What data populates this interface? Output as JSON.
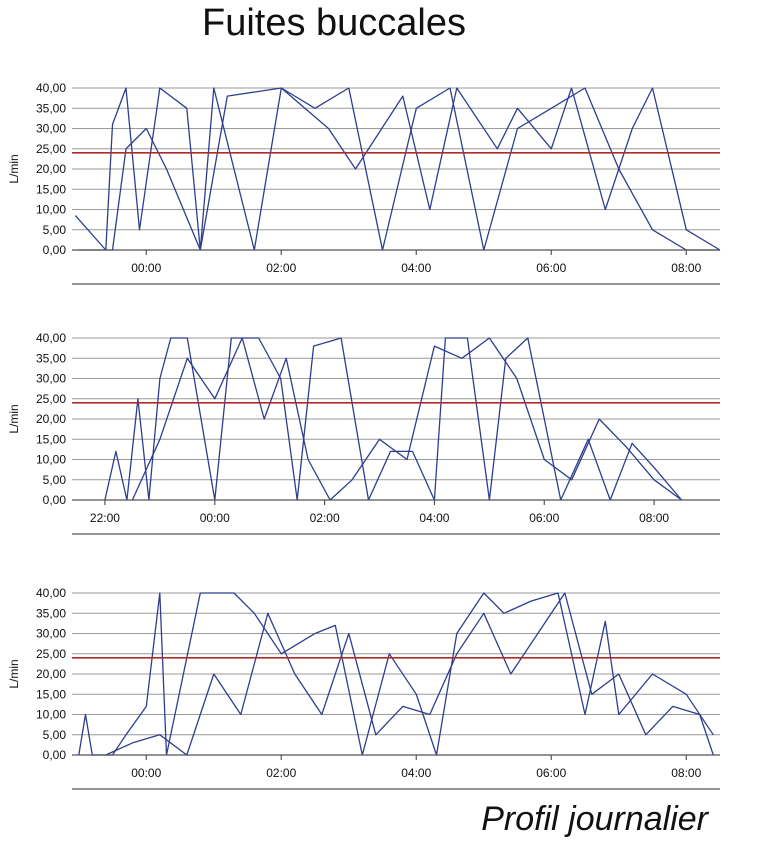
{
  "title": "Fuites buccales",
  "footer": "Profil journalier",
  "colors": {
    "trace": "#2e3e8f",
    "threshold": "#b22b2b",
    "grid": "#9a9a9a"
  },
  "chart_data": [
    {
      "type": "line",
      "ylabel": "L/min",
      "ylim": [
        0,
        40
      ],
      "yticks": [
        "40,00",
        "35,00",
        "30,00",
        "25,00",
        "20,00",
        "15,00",
        "10,00",
        "5,00",
        "0,00"
      ],
      "threshold": 24,
      "xlim": [
        -1.1,
        8.5
      ],
      "xticks": [
        {
          "label": "00:00",
          "x": 0
        },
        {
          "label": "02:00",
          "x": 2
        },
        {
          "label": "04:00",
          "x": 4
        },
        {
          "label": "06:00",
          "x": 6
        },
        {
          "label": "08:00",
          "x": 8
        }
      ],
      "segments": [
        [
          -1.05,
          8.5,
          -0.6,
          0,
          -0.5,
          31,
          -0.3,
          40,
          -0.1,
          5,
          0.2,
          40,
          0.6,
          35,
          0.8,
          0,
          1.0,
          40,
          1.3,
          20,
          1.6,
          0,
          2.0,
          40,
          2.7,
          30,
          3.1,
          20,
          3.8,
          38,
          4.2,
          10,
          4.6,
          40,
          5.2,
          25,
          5.5,
          35,
          6.0,
          25,
          6.3,
          40,
          6.8,
          10,
          7.2,
          30,
          7.5,
          40,
          8.0,
          5,
          8.5,
          0
        ],
        [
          -1.0,
          0,
          -0.5,
          0,
          -0.3,
          25,
          0.0,
          30,
          0.3,
          20,
          0.8,
          0,
          1.2,
          38,
          2.0,
          40,
          2.5,
          35,
          3.0,
          40,
          3.5,
          0,
          4.0,
          35,
          4.5,
          40,
          5.0,
          0,
          5.5,
          30,
          6.0,
          35,
          6.5,
          40,
          7.0,
          20,
          7.5,
          5,
          8.0,
          0,
          8.5,
          0
        ]
      ]
    },
    {
      "type": "line",
      "ylabel": "L/min",
      "ylim": [
        0,
        40
      ],
      "yticks": [
        "40,00",
        "35,00",
        "30,00",
        "25,00",
        "20,00",
        "15,00",
        "10,00",
        "5,00",
        "0,00"
      ],
      "threshold": 24,
      "xlim": [
        -2.6,
        9.2
      ],
      "xticks": [
        {
          "label": "22:00",
          "x": -2
        },
        {
          "label": "00:00",
          "x": 0
        },
        {
          "label": "02:00",
          "x": 2
        },
        {
          "label": "04:00",
          "x": 4
        },
        {
          "label": "06:00",
          "x": 6
        },
        {
          "label": "08:00",
          "x": 8
        }
      ],
      "segments": [
        [
          -2.0,
          0,
          -1.8,
          12,
          -1.6,
          0,
          -1.4,
          25,
          -1.2,
          0,
          -1.0,
          30,
          -0.8,
          40,
          -0.5,
          40,
          0,
          0,
          0.3,
          40,
          0.8,
          40,
          1.2,
          30,
          1.5,
          0,
          1.8,
          38,
          2.3,
          40,
          2.8,
          0,
          3.2,
          12,
          3.6,
          12,
          4.0,
          0,
          4.2,
          40,
          4.6,
          40,
          5.0,
          0,
          5.3,
          35,
          5.7,
          40,
          6.0,
          20,
          6.3,
          0,
          6.8,
          15,
          7.2,
          0,
          7.6,
          14,
          8.0,
          8,
          8.5,
          0
        ],
        [
          -1.5,
          0,
          -1.0,
          15,
          -0.5,
          35,
          0,
          25,
          0.5,
          40,
          0.9,
          20,
          1.3,
          35,
          1.7,
          10,
          2.1,
          0,
          2.5,
          5,
          3.0,
          15,
          3.5,
          10,
          4.0,
          38,
          4.5,
          35,
          5.0,
          40,
          5.5,
          30,
          6.0,
          10,
          6.5,
          5,
          7.0,
          20,
          7.5,
          13,
          8.0,
          5,
          8.5,
          0
        ]
      ]
    },
    {
      "type": "line",
      "ylabel": "L/min",
      "ylim": [
        0,
        40
      ],
      "yticks": [
        "40,00",
        "35,00",
        "30,00",
        "25,00",
        "20,00",
        "15,00",
        "10,00",
        "5,00",
        "0,00"
      ],
      "threshold": 24,
      "xlim": [
        -1.1,
        8.5
      ],
      "xticks": [
        {
          "label": "00:00",
          "x": 0
        },
        {
          "label": "02:00",
          "x": 2
        },
        {
          "label": "04:00",
          "x": 4
        },
        {
          "label": "06:00",
          "x": 6
        },
        {
          "label": "08:00",
          "x": 8
        }
      ],
      "segments": [
        [
          -1.0,
          0,
          -0.9,
          10,
          -0.8,
          0,
          -0.5,
          0,
          -0.3,
          5,
          0,
          12,
          0.2,
          40,
          0.3,
          0,
          0.8,
          40,
          1.3,
          40,
          1.6,
          35,
          2.0,
          25,
          2.5,
          30,
          2.8,
          32,
          3.2,
          0,
          3.6,
          25,
          4.0,
          15,
          4.3,
          0,
          4.6,
          30,
          5.0,
          40,
          5.3,
          35,
          5.7,
          38,
          6.1,
          40,
          6.5,
          10,
          6.8,
          33,
          7.0,
          10,
          7.5,
          20,
          8.0,
          15,
          8.4,
          5
        ],
        [
          -0.6,
          0,
          -0.2,
          3,
          0.2,
          5,
          0.6,
          0,
          1.0,
          20,
          1.4,
          10,
          1.8,
          35,
          2.2,
          20,
          2.6,
          10,
          3.0,
          30,
          3.4,
          5,
          3.8,
          12,
          4.2,
          10,
          4.6,
          25,
          5.0,
          35,
          5.4,
          20,
          5.8,
          30,
          6.2,
          40,
          6.6,
          15,
          7.0,
          20,
          7.4,
          5,
          7.8,
          12,
          8.2,
          10,
          8.4,
          0
        ]
      ]
    }
  ]
}
